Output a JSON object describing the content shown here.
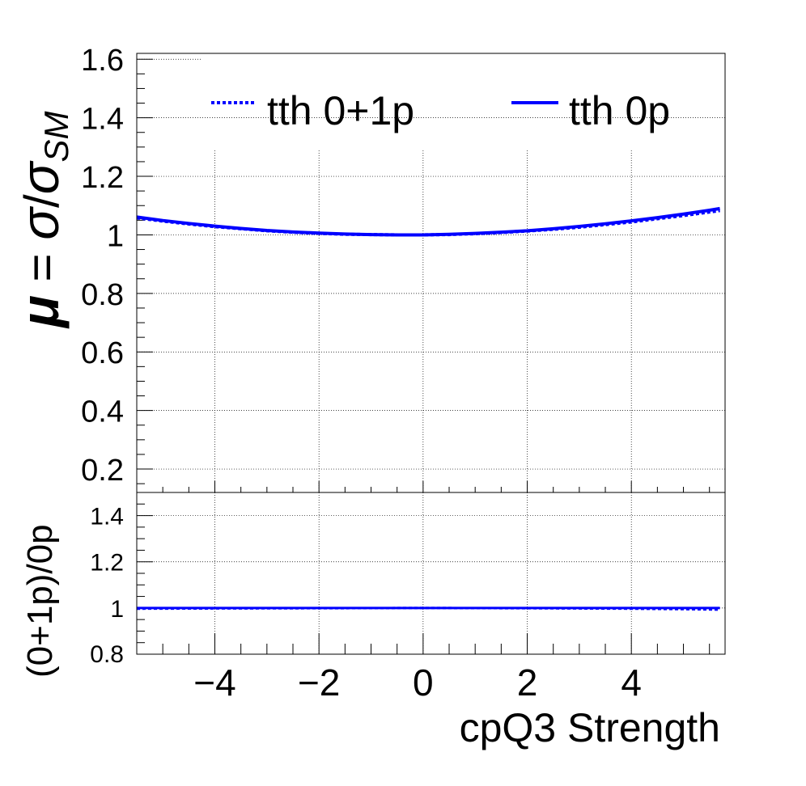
{
  "chart_data": [
    {
      "type": "line",
      "panel": "main",
      "ylabel": {
        "mu": "μ",
        "eq": " = ",
        "sigma1": "σ",
        "slash": "/",
        "sigma2": "σ",
        "sub": "SM"
      },
      "xlim": [
        -5.5,
        5.8
      ],
      "ylim": [
        0.12,
        1.62
      ],
      "yticks": [
        0.2,
        0.4,
        0.6,
        0.8,
        1,
        1.2,
        1.4,
        1.6
      ],
      "ytick_labels": [
        "0.2",
        "0.4",
        "0.6",
        "0.8",
        "1",
        "1.2",
        "1.4",
        "1.6"
      ],
      "xticks": [
        -4,
        -2,
        0,
        2,
        4
      ],
      "grid": true,
      "legend_position": "top",
      "series": [
        {
          "name": "tth 0+1p",
          "style": "dotted",
          "color": "#0000ff",
          "x": [
            -5.5,
            -5.0,
            -4.5,
            -4.0,
            -3.5,
            -3.0,
            -2.5,
            -2.0,
            -1.5,
            -1.0,
            -0.5,
            0.0,
            0.5,
            1.0,
            1.5,
            2.0,
            2.5,
            3.0,
            3.5,
            4.0,
            4.5,
            5.0,
            5.5,
            5.7
          ],
          "y": [
            1.058,
            1.047,
            1.037,
            1.028,
            1.021,
            1.014,
            1.009,
            1.005,
            1.002,
            1.001,
            1.0,
            1.0,
            1.001,
            1.004,
            1.008,
            1.013,
            1.019,
            1.026,
            1.035,
            1.044,
            1.055,
            1.066,
            1.078,
            1.083
          ]
        },
        {
          "name": "tth 0p",
          "style": "solid",
          "color": "#0000ff",
          "x": [
            -5.5,
            -5.0,
            -4.5,
            -4.0,
            -3.5,
            -3.0,
            -2.5,
            -2.0,
            -1.5,
            -1.0,
            -0.5,
            0.0,
            0.5,
            1.0,
            1.5,
            2.0,
            2.5,
            3.0,
            3.5,
            4.0,
            4.5,
            5.0,
            5.5,
            5.7
          ],
          "y": [
            1.061,
            1.049,
            1.039,
            1.03,
            1.022,
            1.015,
            1.01,
            1.006,
            1.003,
            1.001,
            1.0,
            1.0,
            1.002,
            1.005,
            1.009,
            1.014,
            1.021,
            1.029,
            1.038,
            1.048,
            1.059,
            1.071,
            1.084,
            1.09
          ]
        }
      ]
    },
    {
      "type": "line",
      "panel": "ratio",
      "xlabel": "cpQ3 Strength",
      "ylabel": "(0+1p)/0p",
      "xlim": [
        -5.5,
        5.8
      ],
      "ylim": [
        0.8,
        1.5
      ],
      "yticks": [
        0.8,
        1,
        1.2,
        1.4
      ],
      "ytick_labels": [
        "0.8",
        "1",
        "1.2",
        "1.4"
      ],
      "xticks": [
        -4,
        -2,
        0,
        2,
        4
      ],
      "xtick_labels": [
        "−4",
        "−2",
        "0",
        "2",
        "4"
      ],
      "grid": true,
      "series": [
        {
          "style": "solid",
          "color": "#0000ff",
          "x": [
            -5.5,
            -4.0,
            -2.0,
            0.0,
            2.0,
            4.0,
            5.7
          ],
          "y": [
            1.0,
            1.0,
            1.0,
            1.0,
            1.0,
            1.0,
            1.0
          ]
        },
        {
          "style": "dotted",
          "color": "#0000ff",
          "x": [
            -5.5,
            -4.0,
            -2.0,
            0.0,
            2.0,
            4.0,
            5.0,
            5.7
          ],
          "y": [
            0.997,
            0.998,
            0.999,
            1.0,
            0.999,
            0.997,
            0.995,
            0.993
          ]
        }
      ]
    }
  ]
}
